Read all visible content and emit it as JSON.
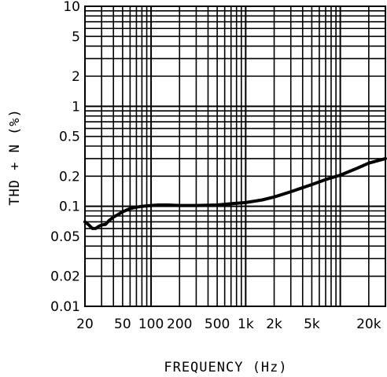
{
  "chart_data": {
    "type": "line",
    "xlabel": "FREQUENCY (Hz)",
    "ylabel": "THD + N (%)",
    "x_scale": "log",
    "y_scale": "log",
    "xlim": [
      20,
      30000
    ],
    "ylim": [
      0.01,
      10
    ],
    "grid": true,
    "x_ticks": [
      {
        "value": 20,
        "label": "20"
      },
      {
        "value": 50,
        "label": "50"
      },
      {
        "value": 100,
        "label": "100"
      },
      {
        "value": 200,
        "label": "200"
      },
      {
        "value": 500,
        "label": "500"
      },
      {
        "value": 1000,
        "label": "1k"
      },
      {
        "value": 2000,
        "label": "2k"
      },
      {
        "value": 5000,
        "label": "5k"
      },
      {
        "value": 20000,
        "label": "20k"
      }
    ],
    "y_ticks": [
      {
        "value": 10,
        "label": "10"
      },
      {
        "value": 5,
        "label": "5"
      },
      {
        "value": 2,
        "label": "2"
      },
      {
        "value": 1,
        "label": "1"
      },
      {
        "value": 0.5,
        "label": "0.5"
      },
      {
        "value": 0.2,
        "label": "0.2"
      },
      {
        "value": 0.1,
        "label": "0.1"
      },
      {
        "value": 0.05,
        "label": "0.05"
      },
      {
        "value": 0.02,
        "label": "0.02"
      },
      {
        "value": 0.01,
        "label": "0.01"
      }
    ],
    "series": [
      {
        "x": [
          20,
          22,
          24,
          26,
          28,
          30,
          33,
          36,
          40,
          45,
          50,
          60,
          70,
          80,
          100,
          120,
          150,
          200,
          300,
          500,
          700,
          1000,
          1500,
          2000,
          3000,
          5000,
          7000,
          10000,
          15000,
          20000,
          30000
        ],
        "y": [
          0.07,
          0.065,
          0.06,
          0.06,
          0.063,
          0.065,
          0.066,
          0.072,
          0.078,
          0.083,
          0.088,
          0.095,
          0.098,
          0.1,
          0.102,
          0.103,
          0.103,
          0.102,
          0.102,
          0.103,
          0.106,
          0.109,
          0.116,
          0.124,
          0.14,
          0.165,
          0.185,
          0.205,
          0.24,
          0.27,
          0.3
        ]
      }
    ]
  }
}
